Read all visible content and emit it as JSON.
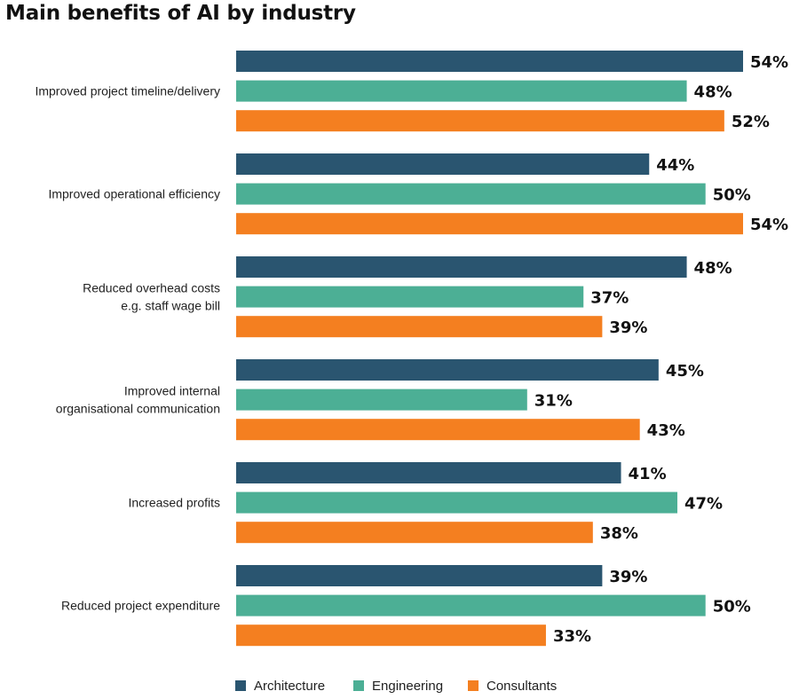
{
  "chart_data": {
    "type": "bar",
    "orientation": "horizontal",
    "title": "Main benefits of AI by industry",
    "categories": [
      [
        "Improved project timeline/delivery"
      ],
      [
        "Improved operational efficiency"
      ],
      [
        "Reduced overhead costs",
        "e.g. staff wage bill"
      ],
      [
        "Improved internal",
        "organisational communication"
      ],
      [
        "Increased profits"
      ],
      [
        "Reduced project expenditure"
      ]
    ],
    "series": [
      {
        "name": "Architecture",
        "color": "#2a5570",
        "values": [
          54,
          44,
          48,
          45,
          41,
          39
        ]
      },
      {
        "name": "Engineering",
        "color": "#4caf95",
        "values": [
          48,
          50,
          37,
          31,
          47,
          50
        ]
      },
      {
        "name": "Consultants",
        "color": "#f47f20",
        "values": [
          52,
          54,
          39,
          43,
          38,
          33
        ]
      }
    ],
    "value_suffix": "%",
    "xlim": [
      0,
      54
    ],
    "grid": false,
    "legend_position": "bottom"
  }
}
